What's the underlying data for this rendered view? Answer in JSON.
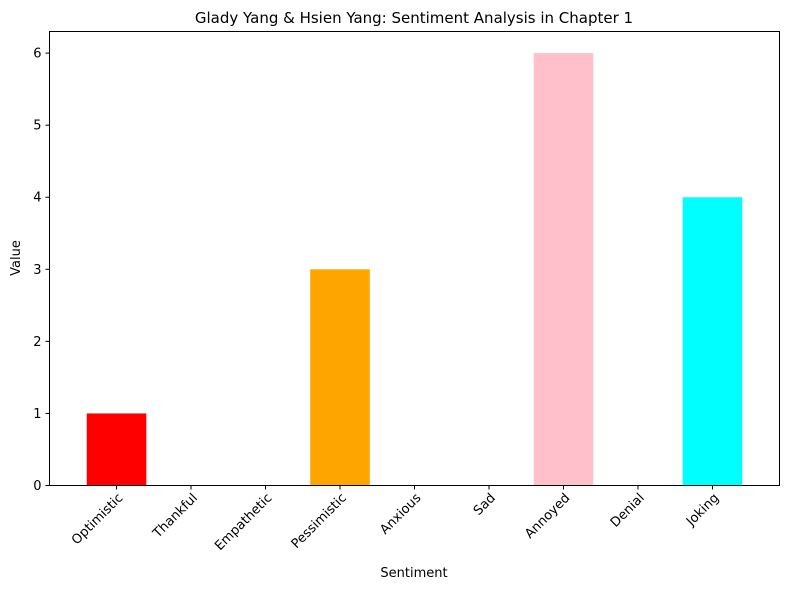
{
  "chart_data": {
    "type": "bar",
    "title": "Glady Yang & Hsien Yang: Sentiment Analysis in Chapter 1",
    "xlabel": "Sentiment",
    "ylabel": "Value",
    "categories": [
      "Optimistic",
      "Thankful",
      "Empathetic",
      "Pessimistic",
      "Anxious",
      "Sad",
      "Annoyed",
      "Denial",
      "Joking"
    ],
    "values": [
      1,
      0,
      0,
      3,
      0,
      0,
      6,
      0,
      4
    ],
    "colors": [
      "#ff0000",
      "#008000",
      "#0000ff",
      "#ffa500",
      "#800080",
      "#a52a2a",
      "#ffc0cb",
      "#808080",
      "#00ffff"
    ],
    "ylim": [
      0,
      6.3
    ],
    "yticks": [
      0,
      1,
      2,
      3,
      4,
      5,
      6
    ],
    "grid": false,
    "legend": "none"
  }
}
